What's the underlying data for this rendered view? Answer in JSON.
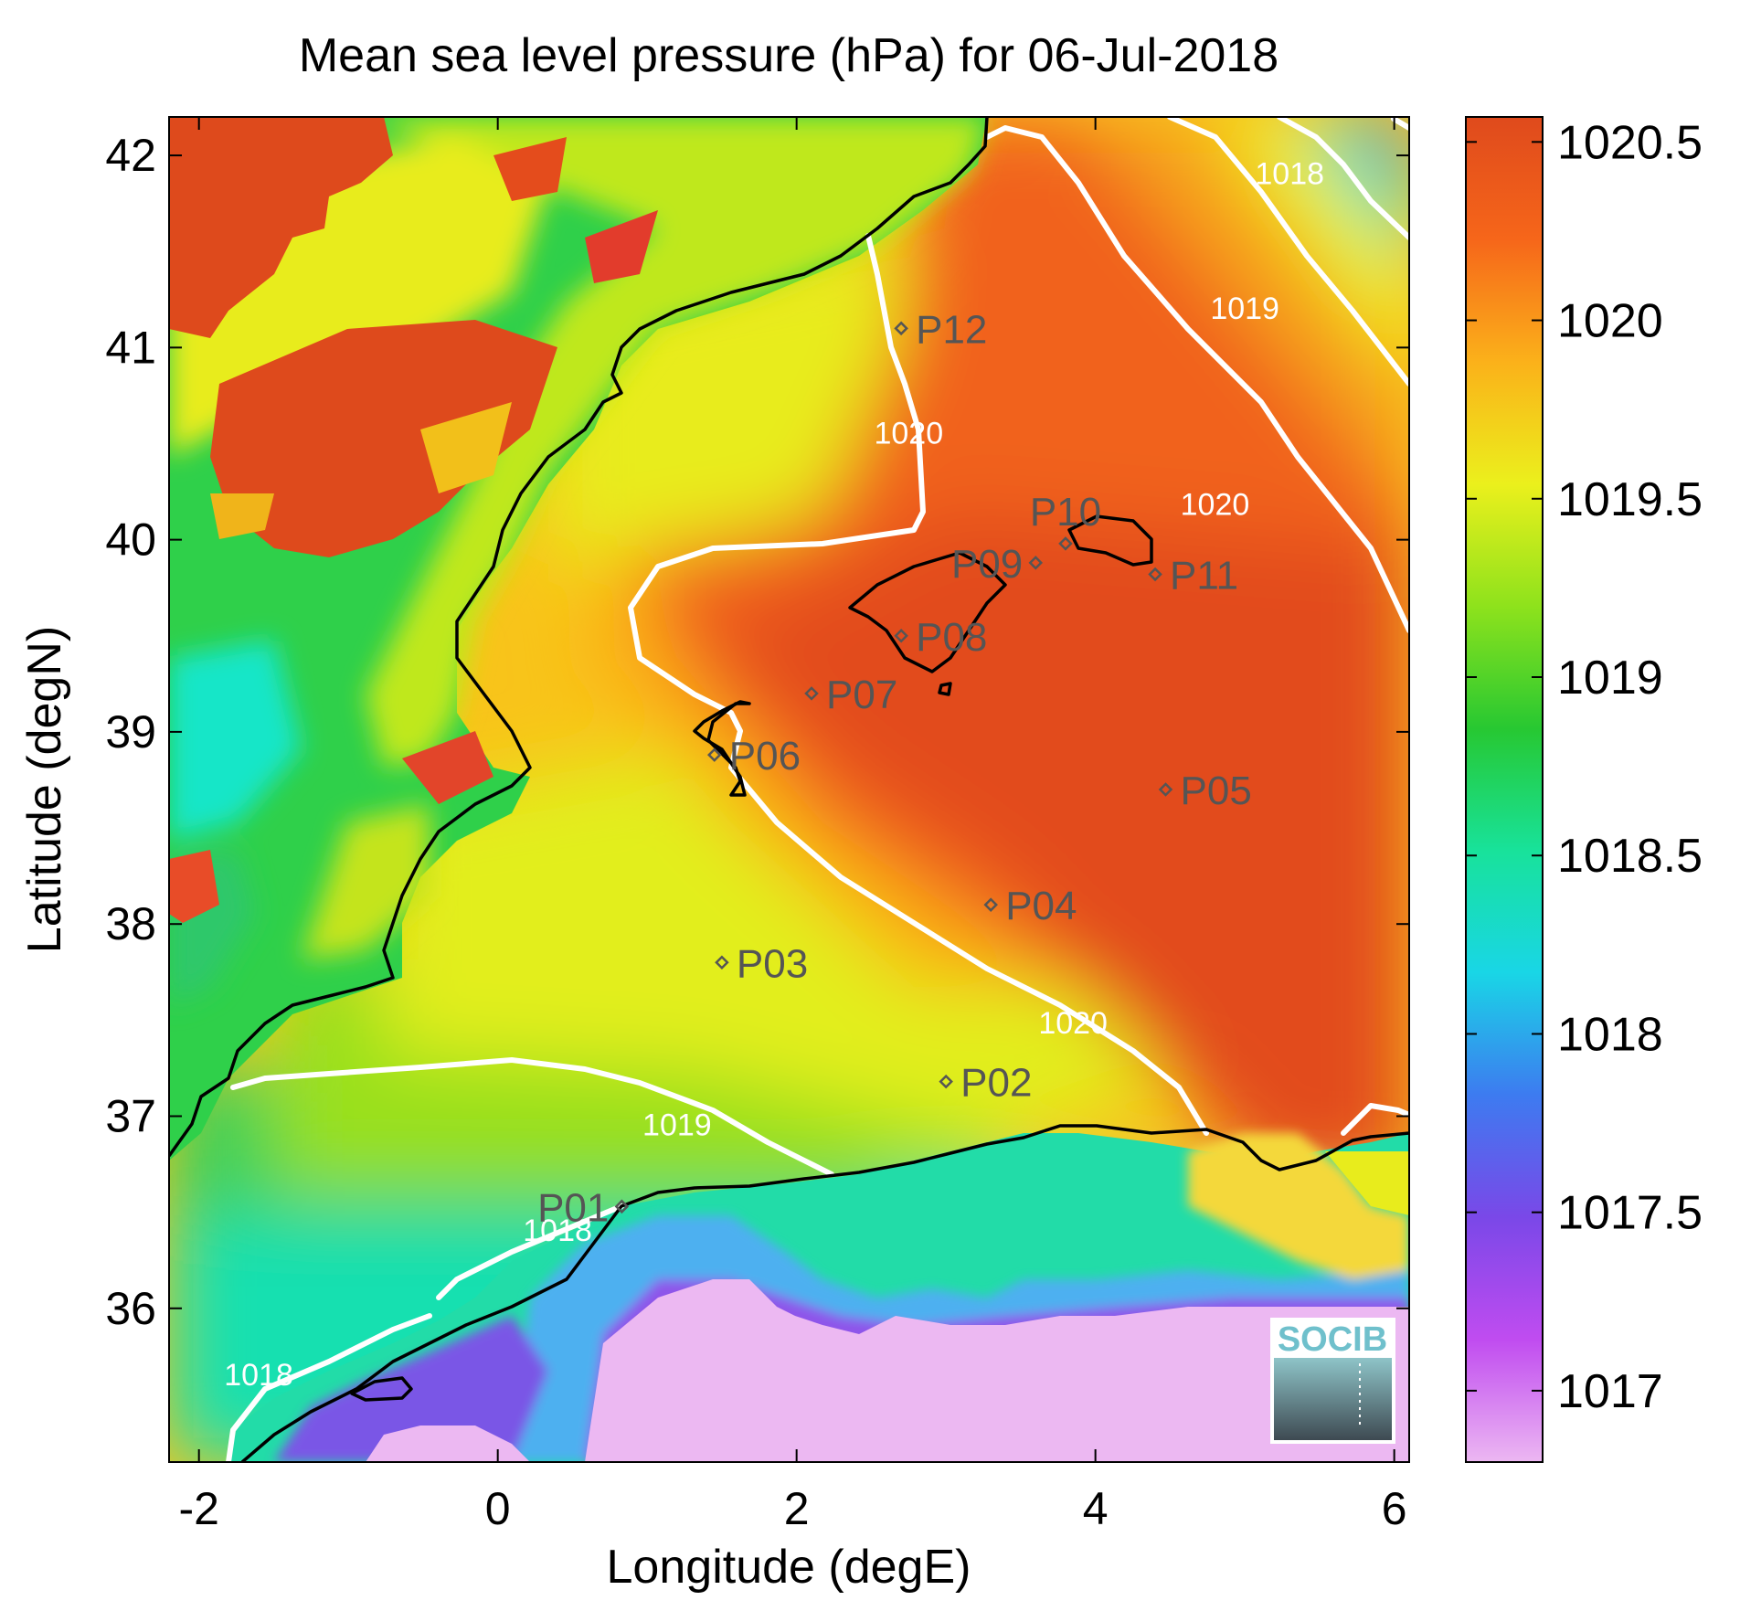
{
  "title": "Mean sea level pressure (hPa) for 06-Jul-2018",
  "x_axis": {
    "label": "Longitude (degE)",
    "range": [
      -2.2,
      6.1
    ],
    "ticks": [
      {
        "value": -2,
        "label": "-2"
      },
      {
        "value": 0,
        "label": "0"
      },
      {
        "value": 2,
        "label": "2"
      },
      {
        "value": 4,
        "label": "4"
      },
      {
        "value": 6,
        "label": "6"
      }
    ]
  },
  "y_axis": {
    "label": "Latitude (degN)",
    "range": [
      35.2,
      42.2
    ],
    "ticks": [
      {
        "value": 36,
        "label": "36"
      },
      {
        "value": 37,
        "label": "37"
      },
      {
        "value": 38,
        "label": "38"
      },
      {
        "value": 39,
        "label": "39"
      },
      {
        "value": 40,
        "label": "40"
      },
      {
        "value": 41,
        "label": "41"
      },
      {
        "value": 42,
        "label": "42"
      }
    ]
  },
  "colorbar": {
    "range": [
      1016.8,
      1020.57
    ],
    "ticks": [
      {
        "value": 1017,
        "label": "1017"
      },
      {
        "value": 1017.5,
        "label": "1017.5"
      },
      {
        "value": 1018,
        "label": "1018"
      },
      {
        "value": 1018.5,
        "label": "1018.5"
      },
      {
        "value": 1019,
        "label": "1019"
      },
      {
        "value": 1019.5,
        "label": "1019.5"
      },
      {
        "value": 1020,
        "label": "1020"
      },
      {
        "value": 1020.5,
        "label": "1020.5"
      }
    ],
    "colors": [
      "#ecb7f2",
      "#c04cf0",
      "#7a48e8",
      "#3d7bf0",
      "#19d6e6",
      "#18e29a",
      "#27c832",
      "#8ee21c",
      "#ebf01c",
      "#fbb11a",
      "#f6661a",
      "#df4a1c"
    ]
  },
  "contour_labels": [
    {
      "text": "1018",
      "lon": 5.3,
      "lat": 41.85
    },
    {
      "text": "1019",
      "lon": 5.0,
      "lat": 41.15
    },
    {
      "text": "1020",
      "lon": 4.8,
      "lat": 40.13
    },
    {
      "text": "1020",
      "lon": 2.75,
      "lat": 40.5
    },
    {
      "text": "1020",
      "lon": 3.85,
      "lat": 37.43
    },
    {
      "text": "1019",
      "lon": 1.2,
      "lat": 36.9
    },
    {
      "text": "1018",
      "lon": 0.4,
      "lat": 36.35
    },
    {
      "text": "1018",
      "lon": -1.6,
      "lat": 35.6
    }
  ],
  "stations": [
    {
      "name": "P01",
      "lon": 0.83,
      "lat": 36.53,
      "label_side": "left"
    },
    {
      "name": "P02",
      "lon": 3.0,
      "lat": 37.18,
      "label_side": "right"
    },
    {
      "name": "P03",
      "lon": 1.5,
      "lat": 37.8,
      "label_side": "right"
    },
    {
      "name": "P04",
      "lon": 3.3,
      "lat": 38.1,
      "label_side": "right"
    },
    {
      "name": "P05",
      "lon": 4.47,
      "lat": 38.7,
      "label_side": "right"
    },
    {
      "name": "P06",
      "lon": 1.45,
      "lat": 38.88,
      "label_side": "right"
    },
    {
      "name": "P07",
      "lon": 2.1,
      "lat": 39.2,
      "label_side": "right"
    },
    {
      "name": "P08",
      "lon": 2.7,
      "lat": 39.5,
      "label_side": "right"
    },
    {
      "name": "P09",
      "lon": 3.6,
      "lat": 39.88,
      "label_side": "left"
    },
    {
      "name": "P10",
      "lon": 3.8,
      "lat": 39.98,
      "label_side": "above"
    },
    {
      "name": "P11",
      "lon": 4.4,
      "lat": 39.82,
      "label_side": "right"
    },
    {
      "name": "P12",
      "lon": 2.7,
      "lat": 41.1,
      "label_side": "right"
    }
  ],
  "logo": {
    "text": "SOCIB"
  }
}
